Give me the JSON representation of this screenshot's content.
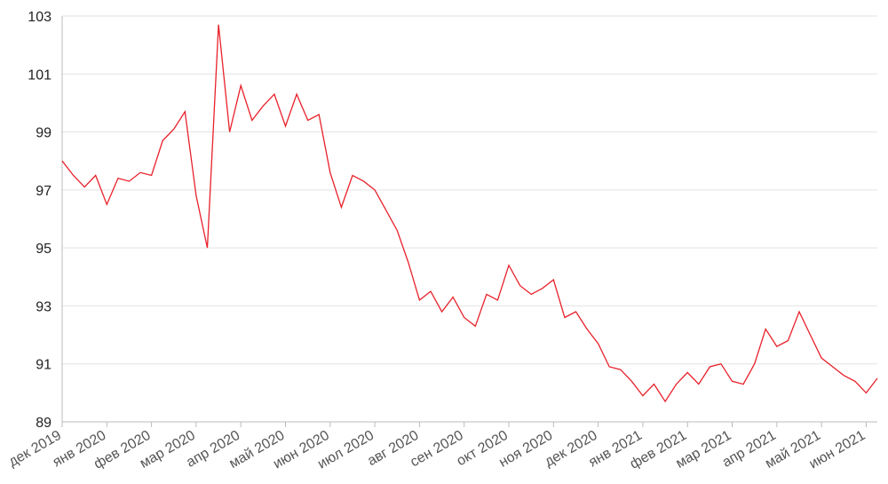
{
  "chart_data": {
    "type": "line",
    "categories": [
      "дек 2019",
      null,
      null,
      null,
      "янв 2020",
      null,
      null,
      null,
      "фев 2020",
      null,
      null,
      null,
      "мар 2020",
      null,
      null,
      null,
      "апр 2020",
      null,
      null,
      null,
      "май 2020",
      null,
      null,
      null,
      "июн 2020",
      null,
      null,
      null,
      "июл 2020",
      null,
      null,
      null,
      "авг 2020",
      null,
      null,
      null,
      "сен 2020",
      null,
      null,
      null,
      "окт 2020",
      null,
      null,
      null,
      "ноя 2020",
      null,
      null,
      null,
      "дек 2020",
      null,
      null,
      null,
      "янв 2021",
      null,
      null,
      null,
      "фев 2021",
      null,
      null,
      null,
      "мар 2021",
      null,
      null,
      null,
      "апр 2021",
      null,
      null,
      null,
      "май 2021",
      null,
      null,
      null,
      "июн 2021",
      null
    ],
    "series": [
      {
        "color": "#e8212b",
        "values": [
          98.0,
          97.5,
          97.1,
          97.5,
          96.5,
          97.4,
          97.3,
          97.6,
          97.5,
          98.7,
          99.1,
          99.7,
          96.8,
          95.0,
          102.7,
          99.0,
          100.6,
          99.4,
          99.9,
          100.3,
          99.2,
          100.3,
          99.4,
          99.6,
          97.6,
          96.4,
          97.5,
          97.3,
          97.0,
          96.3,
          95.6,
          94.5,
          93.2,
          93.5,
          92.8,
          93.3,
          92.6,
          92.3,
          93.4,
          93.2,
          94.4,
          93.7,
          93.4,
          93.6,
          93.9,
          92.6,
          92.8,
          92.2,
          91.7,
          90.9,
          90.8,
          90.4,
          89.9,
          90.3,
          89.7,
          90.3,
          90.7,
          90.3,
          90.9,
          91.0,
          90.4,
          90.3,
          91.0,
          92.2,
          91.6,
          91.8,
          92.8,
          92.0,
          91.2,
          90.9,
          90.6,
          90.4,
          90.0,
          90.5
        ]
      }
    ],
    "ylim": [
      89,
      103
    ],
    "yticks": [
      89,
      91,
      93,
      95,
      97,
      99,
      101,
      103
    ],
    "grid": true
  }
}
